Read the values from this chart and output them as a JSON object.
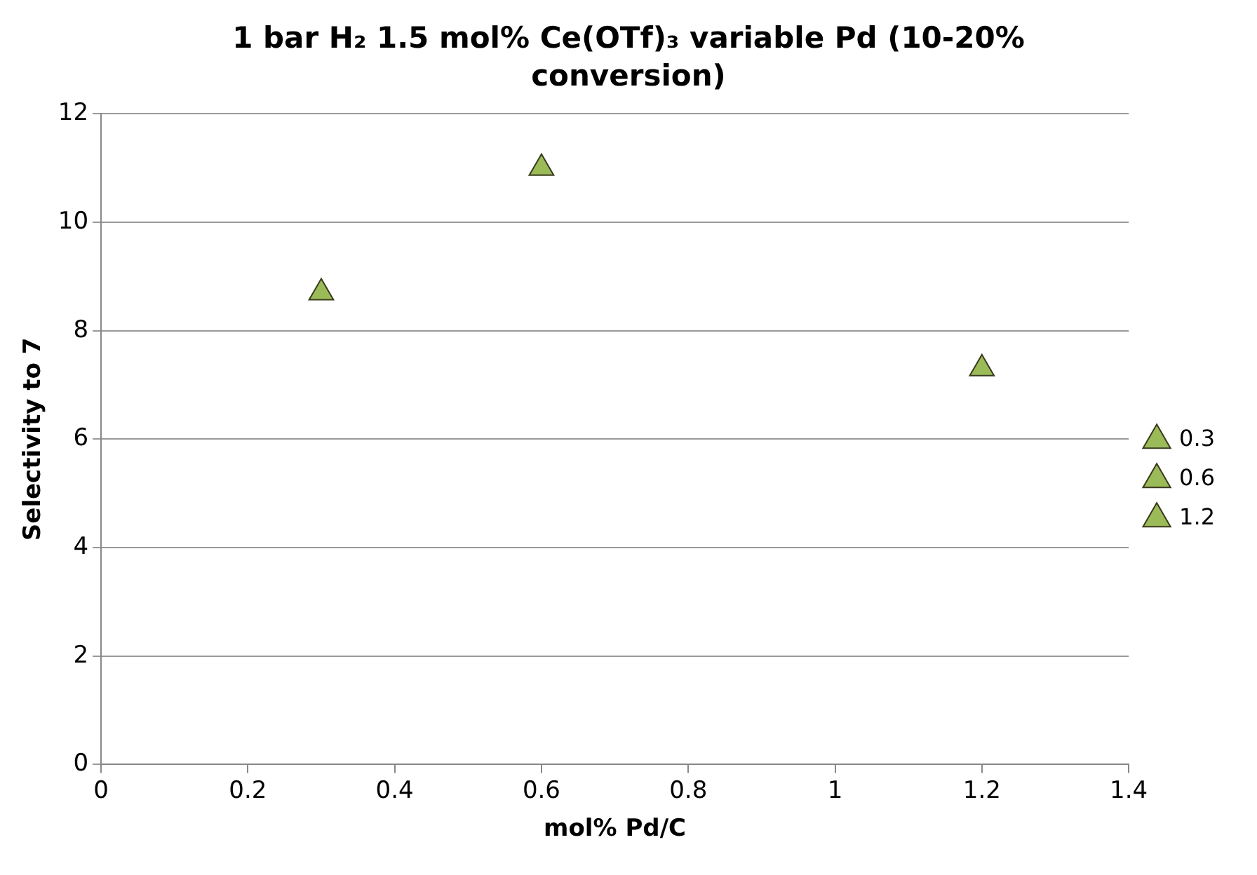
{
  "chart_data": {
    "type": "scatter",
    "title": "1 bar H₂ 1.5 mol% Ce(OTf)₃ variable Pd (10-20% conversion)",
    "xlabel": "mol% Pd/C",
    "ylabel": "Selectivity to 7",
    "series": [
      {
        "name": "0.3",
        "color": "#9bbb59",
        "x": [
          0.3
        ],
        "values": [
          8.7
        ]
      },
      {
        "name": "0.6",
        "color": "#9bbb59",
        "x": [
          0.6
        ],
        "values": [
          11.0
        ]
      },
      {
        "name": "1.2",
        "color": "#9bbb59",
        "x": [
          1.2
        ],
        "values": [
          7.3
        ]
      }
    ],
    "xlim": [
      0,
      1.4
    ],
    "xticks": [
      0,
      0.2,
      0.4,
      0.6,
      0.8,
      1,
      1.2,
      1.4
    ],
    "ylim": [
      0,
      12
    ],
    "yticks": [
      0,
      2,
      4,
      6,
      8,
      10,
      12
    ],
    "grid": "y",
    "legend": "right",
    "marker": "triangle"
  }
}
